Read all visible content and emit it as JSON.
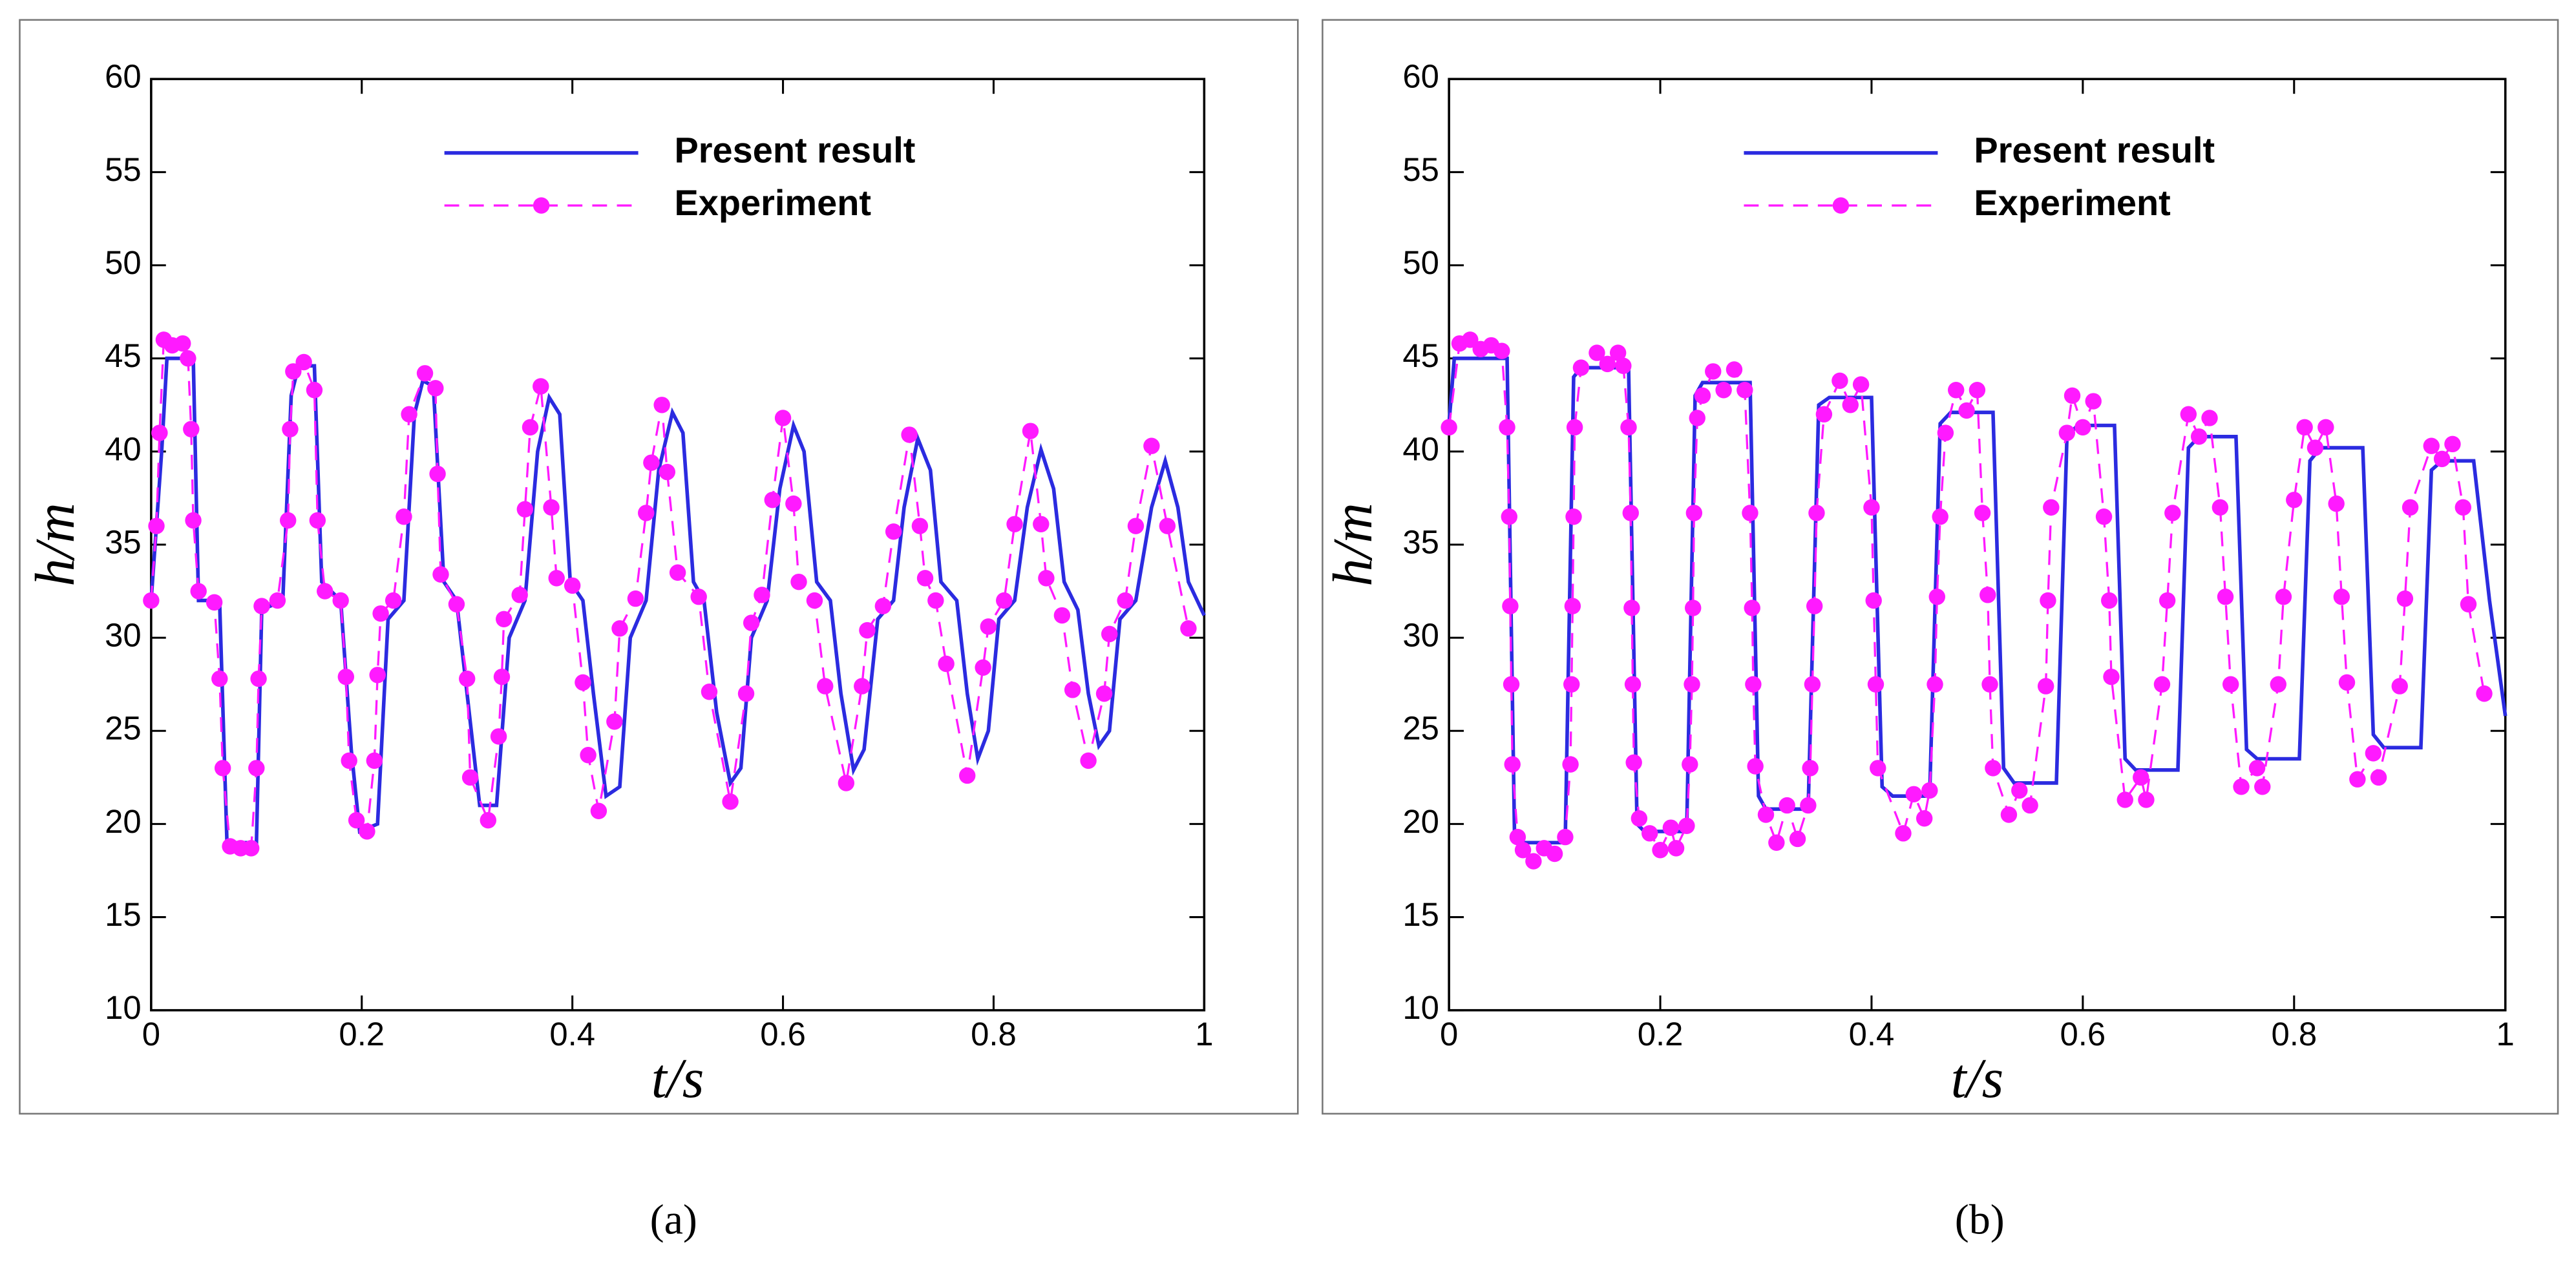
{
  "chart_data": [
    {
      "type": "line",
      "caption": "(a)",
      "xlabel": "t/s",
      "ylabel": "h/m",
      "xlim": [
        0,
        1
      ],
      "ylim": [
        10,
        60
      ],
      "xticks": [
        0,
        0.2,
        0.4,
        0.6,
        0.8,
        1
      ],
      "yticks": [
        10,
        15,
        20,
        25,
        30,
        35,
        40,
        45,
        50,
        55,
        60
      ],
      "legend": "upper center",
      "series": [
        {
          "name": "Present result",
          "color": "#2b2be0",
          "x": [
            0,
            0.01,
            0.015,
            0.04,
            0.045,
            0.065,
            0.072,
            0.1,
            0.105,
            0.125,
            0.133,
            0.14,
            0.155,
            0.162,
            0.18,
            0.19,
            0.198,
            0.215,
            0.225,
            0.24,
            0.25,
            0.258,
            0.268,
            0.278,
            0.29,
            0.302,
            0.312,
            0.328,
            0.34,
            0.355,
            0.367,
            0.378,
            0.388,
            0.398,
            0.41,
            0.42,
            0.432,
            0.445,
            0.455,
            0.47,
            0.482,
            0.495,
            0.505,
            0.515,
            0.525,
            0.537,
            0.55,
            0.56,
            0.57,
            0.585,
            0.597,
            0.61,
            0.62,
            0.632,
            0.645,
            0.655,
            0.667,
            0.677,
            0.69,
            0.705,
            0.715,
            0.728,
            0.74,
            0.75,
            0.765,
            0.775,
            0.785,
            0.795,
            0.805,
            0.82,
            0.832,
            0.845,
            0.857,
            0.867,
            0.88,
            0.89,
            0.9,
            0.91,
            0.92,
            0.935,
            0.95,
            0.963,
            0.975,
            0.985,
            1
          ],
          "values": [
            32,
            40,
            45,
            45,
            32,
            32,
            19,
            19,
            31.5,
            32,
            43,
            44.6,
            44.6,
            33,
            32,
            24,
            19.6,
            20,
            31,
            32,
            42,
            43.8,
            43.5,
            33,
            32,
            26,
            21,
            21,
            30,
            32,
            40,
            42.9,
            42,
            33,
            32,
            27,
            21.5,
            22,
            30,
            32,
            39,
            42.1,
            41,
            33,
            32,
            26,
            22.2,
            23,
            30,
            32,
            38,
            41.4,
            40,
            33,
            32,
            27,
            22.9,
            24,
            31,
            32,
            37,
            40.7,
            39,
            33,
            32,
            27,
            23.5,
            25,
            31,
            32,
            37,
            40.1,
            38,
            33,
            31.5,
            27,
            24.2,
            25,
            31,
            32,
            37,
            39.5,
            37,
            33,
            31.2
          ]
        },
        {
          "name": "Experiment",
          "color": "#ff1aff",
          "dash": true,
          "markers": true,
          "x": [
            0,
            0.005,
            0.008,
            0.012,
            0.02,
            0.03,
            0.035,
            0.038,
            0.04,
            0.045,
            0.06,
            0.065,
            0.068,
            0.075,
            0.085,
            0.095,
            0.1,
            0.102,
            0.105,
            0.12,
            0.13,
            0.132,
            0.135,
            0.145,
            0.155,
            0.158,
            0.165,
            0.18,
            0.185,
            0.188,
            0.195,
            0.205,
            0.212,
            0.215,
            0.218,
            0.23,
            0.24,
            0.245,
            0.26,
            0.27,
            0.272,
            0.275,
            0.29,
            0.3,
            0.303,
            0.32,
            0.33,
            0.333,
            0.335,
            0.35,
            0.355,
            0.36,
            0.37,
            0.38,
            0.385,
            0.4,
            0.41,
            0.415,
            0.425,
            0.44,
            0.445,
            0.46,
            0.47,
            0.475,
            0.485,
            0.49,
            0.5,
            0.52,
            0.53,
            0.55,
            0.565,
            0.57,
            0.58,
            0.59,
            0.6,
            0.61,
            0.615,
            0.63,
            0.64,
            0.66,
            0.675,
            0.68,
            0.695,
            0.705,
            0.72,
            0.73,
            0.735,
            0.745,
            0.755,
            0.775,
            0.79,
            0.795,
            0.81,
            0.82,
            0.835,
            0.845,
            0.85,
            0.865,
            0.875,
            0.89,
            0.905,
            0.91,
            0.925,
            0.935,
            0.95,
            0.965,
            0.985
          ],
          "values": [
            32,
            36,
            41,
            46,
            45.7,
            45.8,
            45,
            41.2,
            36.3,
            32.5,
            31.9,
            27.8,
            23,
            18.8,
            18.7,
            18.7,
            23,
            27.8,
            31.7,
            32,
            36.3,
            41.2,
            44.3,
            44.8,
            43.3,
            36.3,
            32.5,
            32,
            27.9,
            23.4,
            20.2,
            19.6,
            23.4,
            28,
            31.3,
            32,
            36.5,
            42,
            44.2,
            43.4,
            38.8,
            33.4,
            31.8,
            27.8,
            22.5,
            20.2,
            24.7,
            27.9,
            31,
            32.3,
            36.9,
            41.3,
            43.5,
            37,
            33.2,
            32.8,
            27.6,
            23.7,
            20.7,
            25.5,
            30.5,
            32.1,
            36.7,
            39.4,
            42.5,
            38.9,
            33.5,
            32.2,
            27.1,
            21.2,
            27,
            30.8,
            32.3,
            37.4,
            41.8,
            37.2,
            33,
            32,
            27.4,
            22.2,
            27.4,
            30.4,
            31.7,
            35.7,
            40.9,
            36,
            33.2,
            32,
            28.6,
            22.6,
            28.4,
            30.6,
            32,
            36.1,
            41.1,
            36.1,
            33.2,
            31.2,
            27.2,
            23.4,
            27,
            30.2,
            32,
            36,
            40.3,
            36,
            30.5
          ]
        }
      ]
    },
    {
      "type": "line",
      "caption": "(b)",
      "xlabel": "t/s",
      "ylabel": "h/m",
      "xlim": [
        0,
        1
      ],
      "ylim": [
        10,
        60
      ],
      "xticks": [
        0,
        0.2,
        0.4,
        0.6,
        0.8,
        1
      ],
      "yticks": [
        10,
        15,
        20,
        25,
        30,
        35,
        40,
        45,
        50,
        55,
        60
      ],
      "legend": "upper center",
      "series": [
        {
          "name": "Present result",
          "color": "#2b2be0",
          "x": [
            0,
            0.005,
            0.055,
            0.062,
            0.07,
            0.11,
            0.118,
            0.125,
            0.17,
            0.178,
            0.185,
            0.225,
            0.233,
            0.24,
            0.285,
            0.293,
            0.3,
            0.34,
            0.35,
            0.36,
            0.4,
            0.41,
            0.42,
            0.455,
            0.465,
            0.475,
            0.515,
            0.525,
            0.535,
            0.575,
            0.585,
            0.595,
            0.63,
            0.64,
            0.65,
            0.69,
            0.7,
            0.71,
            0.745,
            0.755,
            0.765,
            0.805,
            0.815,
            0.825,
            0.865,
            0.875,
            0.885,
            0.92,
            0.93,
            0.94,
            0.97,
            0.985,
            1
          ],
          "values": [
            41.5,
            45,
            45,
            19.5,
            19,
            19,
            44,
            44.5,
            44.5,
            20,
            19.6,
            19.6,
            43,
            43.7,
            43.7,
            21.5,
            20.8,
            20.8,
            42.5,
            42.9,
            42.9,
            22,
            21.5,
            21.5,
            41.5,
            42.1,
            42.1,
            23,
            22.2,
            22.2,
            40.8,
            41.4,
            41.4,
            23.5,
            22.9,
            22.9,
            40.2,
            40.8,
            40.8,
            24,
            23.5,
            23.5,
            39.5,
            40.2,
            40.2,
            24.8,
            24.1,
            24.1,
            39,
            39.5,
            39.5,
            32,
            25.8
          ]
        },
        {
          "name": "Experiment",
          "color": "#ff1aff",
          "dash": true,
          "markers": true,
          "x": [
            0,
            0.01,
            0.02,
            0.03,
            0.04,
            0.05,
            0.055,
            0.057,
            0.058,
            0.059,
            0.06,
            0.065,
            0.07,
            0.08,
            0.09,
            0.1,
            0.11,
            0.115,
            0.116,
            0.117,
            0.118,
            0.119,
            0.125,
            0.14,
            0.15,
            0.16,
            0.165,
            0.17,
            0.172,
            0.173,
            0.174,
            0.175,
            0.18,
            0.19,
            0.2,
            0.21,
            0.215,
            0.225,
            0.228,
            0.23,
            0.231,
            0.232,
            0.235,
            0.24,
            0.25,
            0.26,
            0.27,
            0.28,
            0.285,
            0.287,
            0.288,
            0.29,
            0.3,
            0.31,
            0.32,
            0.33,
            0.34,
            0.342,
            0.344,
            0.346,
            0.348,
            0.355,
            0.37,
            0.38,
            0.39,
            0.4,
            0.402,
            0.404,
            0.406,
            0.43,
            0.44,
            0.45,
            0.455,
            0.46,
            0.462,
            0.465,
            0.47,
            0.48,
            0.49,
            0.5,
            0.505,
            0.51,
            0.512,
            0.515,
            0.53,
            0.54,
            0.55,
            0.565,
            0.567,
            0.57,
            0.585,
            0.59,
            0.6,
            0.61,
            0.62,
            0.625,
            0.627,
            0.64,
            0.655,
            0.66,
            0.675,
            0.68,
            0.685,
            0.7,
            0.71,
            0.72,
            0.73,
            0.735,
            0.74,
            0.75,
            0.765,
            0.77,
            0.785,
            0.79,
            0.8,
            0.81,
            0.82,
            0.83,
            0.84,
            0.845,
            0.85,
            0.86,
            0.875,
            0.88,
            0.9,
            0.905,
            0.91,
            0.93,
            0.94,
            0.95,
            0.96,
            0.965,
            0.98
          ],
          "values": [
            41.3,
            45.8,
            46,
            45.5,
            45.7,
            45.4,
            41.3,
            36.5,
            31.7,
            27.5,
            23.2,
            19.3,
            18.6,
            18,
            18.7,
            18.4,
            19.3,
            23.2,
            27.5,
            31.7,
            36.5,
            41.3,
            44.5,
            45.3,
            44.7,
            45.3,
            44.6,
            41.3,
            36.7,
            31.6,
            27.5,
            23.3,
            20.3,
            19.5,
            18.6,
            19.8,
            18.7,
            19.9,
            23.2,
            27.5,
            31.6,
            36.7,
            41.8,
            43,
            44.3,
            43.3,
            44.4,
            43.3,
            36.7,
            31.6,
            27.5,
            23.1,
            20.5,
            19,
            21,
            19.2,
            21,
            23,
            27.5,
            31.7,
            36.7,
            42,
            43.8,
            42.5,
            43.6,
            37,
            32,
            27.5,
            23,
            19.5,
            21.6,
            20.3,
            21.8,
            27.5,
            32.2,
            36.5,
            41,
            43.3,
            42.2,
            43.3,
            36.7,
            32.3,
            27.5,
            23,
            20.5,
            21.8,
            21,
            27.4,
            32,
            37,
            41,
            43,
            41.3,
            42.7,
            36.5,
            32,
            27.9,
            21.3,
            22.5,
            21.3,
            27.5,
            32,
            36.7,
            42,
            40.8,
            41.8,
            37,
            32.2,
            27.5,
            22,
            23,
            22,
            27.5,
            32.2,
            37.4,
            41.3,
            40.2,
            41.3,
            37.2,
            32.2,
            27.6,
            22.4,
            23.8,
            22.5,
            27.4,
            32.1,
            37,
            40.3,
            39.6,
            40.4,
            37,
            31.8,
            27
          ]
        }
      ]
    }
  ]
}
